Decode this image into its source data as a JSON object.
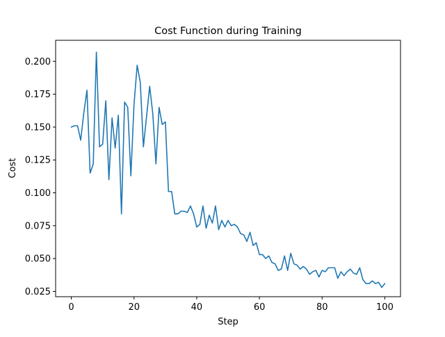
{
  "chart_data": {
    "type": "line",
    "title": "Cost Function during Training",
    "xlabel": "Step",
    "ylabel": "Cost",
    "xlim": [
      -5,
      105
    ],
    "ylim": [
      0.021,
      0.216
    ],
    "xticks": [
      0,
      20,
      40,
      60,
      80,
      100
    ],
    "yticks": [
      0.025,
      0.05,
      0.075,
      0.1,
      0.125,
      0.15,
      0.175,
      0.2
    ],
    "ytick_labels": [
      "0.025",
      "0.050",
      "0.075",
      "0.100",
      "0.125",
      "0.150",
      "0.175",
      "0.200"
    ],
    "grid": false,
    "line_color": "#1f77b4",
    "series": [
      {
        "x": [
          0,
          1,
          2,
          3,
          4,
          5,
          6,
          7,
          8,
          9,
          10,
          11,
          12,
          13,
          14,
          15,
          16,
          17,
          18,
          19,
          20,
          21,
          22,
          23,
          24,
          25,
          26,
          27,
          28,
          29,
          30,
          31,
          32,
          33,
          34,
          35,
          36,
          37,
          38,
          39,
          40,
          41,
          42,
          43,
          44,
          45,
          46,
          47,
          48,
          49,
          50,
          51,
          52,
          53,
          54,
          55,
          56,
          57,
          58,
          59,
          60,
          61,
          62,
          63,
          64,
          65,
          66,
          67,
          68,
          69,
          70,
          71,
          72,
          73,
          74,
          75,
          76,
          77,
          78,
          79,
          80,
          81,
          82,
          83,
          84,
          85,
          86,
          87,
          88,
          89,
          90,
          91,
          92,
          93,
          94,
          95,
          96,
          97,
          98,
          99,
          100
        ],
        "values": [
          0.15,
          0.151,
          0.151,
          0.14,
          0.161,
          0.178,
          0.115,
          0.122,
          0.207,
          0.135,
          0.137,
          0.17,
          0.11,
          0.157,
          0.134,
          0.159,
          0.084,
          0.169,
          0.165,
          0.113,
          0.167,
          0.197,
          0.184,
          0.135,
          0.158,
          0.181,
          0.16,
          0.122,
          0.165,
          0.152,
          0.154,
          0.101,
          0.101,
          0.084,
          0.084,
          0.086,
          0.086,
          0.085,
          0.09,
          0.084,
          0.074,
          0.076,
          0.09,
          0.073,
          0.083,
          0.077,
          0.09,
          0.072,
          0.079,
          0.074,
          0.079,
          0.075,
          0.076,
          0.074,
          0.069,
          0.068,
          0.063,
          0.07,
          0.06,
          0.062,
          0.053,
          0.053,
          0.05,
          0.052,
          0.047,
          0.046,
          0.041,
          0.042,
          0.052,
          0.041,
          0.054,
          0.046,
          0.045,
          0.042,
          0.044,
          0.042,
          0.038,
          0.04,
          0.041,
          0.036,
          0.041,
          0.04,
          0.043,
          0.043,
          0.043,
          0.035,
          0.04,
          0.037,
          0.04,
          0.042,
          0.039,
          0.038,
          0.043,
          0.034,
          0.031,
          0.031,
          0.033,
          0.031,
          0.032,
          0.028,
          0.031
        ]
      }
    ]
  }
}
